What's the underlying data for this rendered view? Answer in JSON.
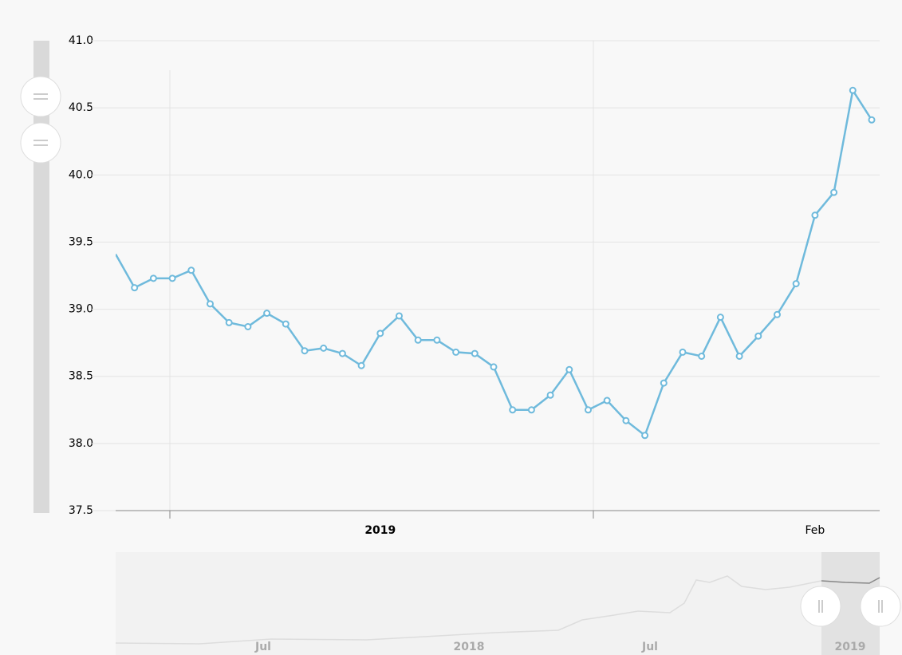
{
  "chart_data": {
    "type": "line",
    "categories": [
      null,
      null,
      null,
      null,
      null,
      null,
      null,
      null,
      null,
      null,
      null,
      null,
      null,
      null,
      "2019",
      null,
      null,
      null,
      null,
      null,
      null,
      null,
      null,
      null,
      null,
      null,
      null,
      null,
      null,
      null,
      null,
      null,
      null,
      null,
      null,
      null,
      null,
      "Feb",
      null,
      null,
      null
    ],
    "series": [
      {
        "color": "#6fbadc",
        "values": [
          39.41,
          39.16,
          39.23,
          39.23,
          39.29,
          39.04,
          38.9,
          38.87,
          38.97,
          38.89,
          38.69,
          38.71,
          38.67,
          38.58,
          38.82,
          38.95,
          38.77,
          38.77,
          38.68,
          38.67,
          38.57,
          38.25,
          38.25,
          38.36,
          38.55,
          38.25,
          38.32,
          38.17,
          38.06,
          38.45,
          38.68,
          38.65,
          38.94,
          38.65,
          38.8,
          38.96,
          39.19,
          39.7,
          39.87,
          40.63,
          40.41
        ]
      }
    ],
    "ylim": [
      37.5,
      41
    ],
    "yticks": [
      {
        "value": 37.5,
        "label": "37.5"
      },
      {
        "value": 38,
        "label": "38.0"
      },
      38.5,
      {
        "value": 39,
        "label": "39.0"
      },
      39.5,
      {
        "value": 40,
        "label": "40.0"
      },
      40.5,
      {
        "value": 41,
        "label": "41.0"
      }
    ],
    "grid": true
  },
  "navigator": {
    "labels": [
      "Jul",
      "2018",
      "Jul",
      "2019"
    ]
  }
}
